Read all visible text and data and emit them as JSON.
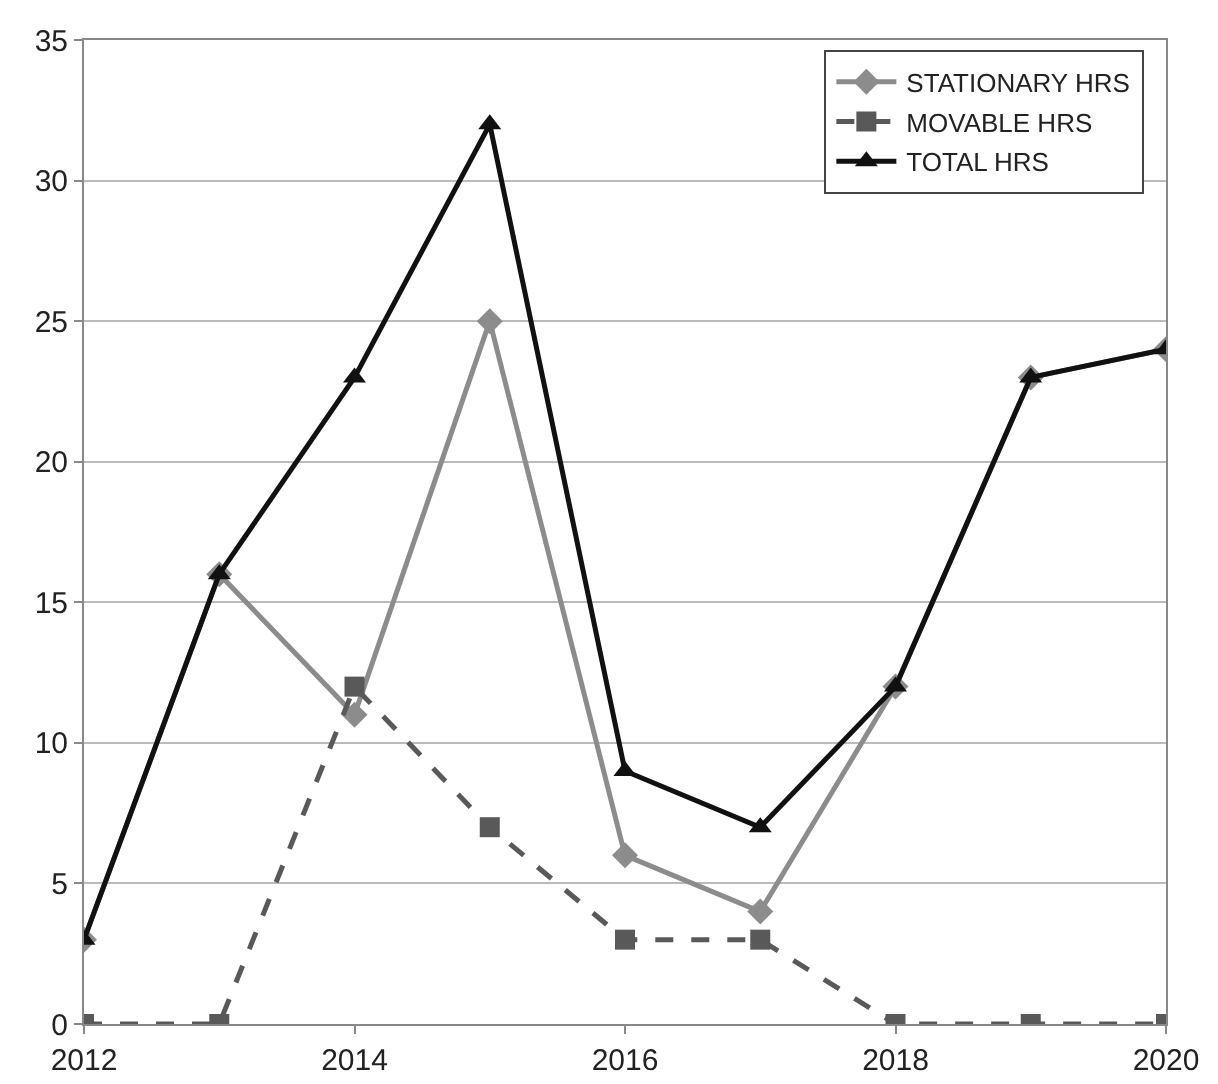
{
  "chart_data": {
    "type": "line",
    "x": [
      2012,
      2013,
      2014,
      2015,
      2016,
      2017,
      2018,
      2019,
      2020
    ],
    "series": [
      {
        "name": "STATIONARY HRS",
        "color": "#8c8c8c",
        "marker": "diamond",
        "line_style": "solid",
        "values": [
          3,
          16,
          11,
          25,
          6,
          4,
          12,
          23,
          24
        ]
      },
      {
        "name": "MOVABLE HRS",
        "color": "#595959",
        "marker": "square",
        "line_style": "dashed",
        "values": [
          0,
          0,
          12,
          7,
          3,
          3,
          0,
          0,
          0
        ]
      },
      {
        "name": "TOTAL HRS",
        "color": "#111111",
        "marker": "triangle",
        "line_style": "solid",
        "values": [
          3,
          16,
          23,
          32,
          9,
          7,
          12,
          23,
          24
        ]
      }
    ],
    "xlim": [
      2012,
      2020
    ],
    "xticks": [
      2012,
      2014,
      2016,
      2018,
      2020
    ],
    "ylim": [
      0,
      35
    ],
    "yticks": [
      0,
      5,
      10,
      15,
      20,
      25,
      30,
      35
    ],
    "grid": "y",
    "legend": "top right"
  }
}
